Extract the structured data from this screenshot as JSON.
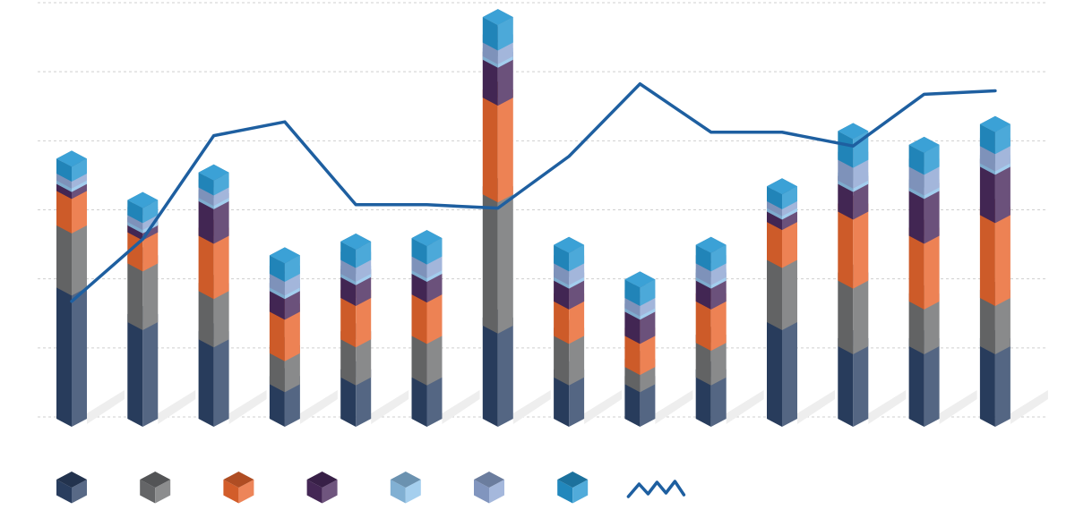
{
  "chart_data": {
    "type": "bar",
    "stacked": true,
    "style": "isometric-3d",
    "grid": true,
    "legend_placement": "bottom",
    "categories": [
      "",
      "",
      "",
      "",
      "",
      "",
      "",
      "",
      "",
      "",
      "",
      "",
      "",
      ""
    ],
    "ylim": [
      0,
      6.0
    ],
    "series": [
      {
        "type": "bar",
        "color": "#2e4468",
        "values": [
          1.9,
          1.4,
          1.15,
          0.5,
          0.6,
          0.6,
          1.35,
          0.6,
          0.5,
          0.6,
          1.4,
          1.05,
          1.05,
          1.05
        ]
      },
      {
        "type": "bar",
        "color": "#6f7072",
        "values": [
          0.9,
          0.85,
          0.7,
          0.45,
          0.55,
          0.6,
          1.9,
          0.6,
          0.25,
          0.5,
          0.9,
          0.95,
          0.65,
          0.7
        ]
      },
      {
        "type": "bar",
        "color": "#e9672f",
        "values": [
          0.5,
          0.45,
          0.8,
          0.6,
          0.6,
          0.6,
          1.4,
          0.5,
          0.45,
          0.6,
          0.55,
          1.0,
          0.95,
          1.2
        ]
      },
      {
        "type": "bar",
        "color": "#4b2b5e",
        "values": [
          0.1,
          0.1,
          0.5,
          0.3,
          0.3,
          0.3,
          0.55,
          0.3,
          0.35,
          0.3,
          0.15,
          0.4,
          0.65,
          0.7
        ]
      },
      {
        "type": "bar",
        "color": "#8fc3ea",
        "values": [
          0.05,
          0.05,
          0.05,
          0.05,
          0.05,
          0.05,
          0.05,
          0.05,
          0.05,
          0.05,
          0.05,
          0.05,
          0.05,
          0.05
        ]
      },
      {
        "type": "bar",
        "color": "#8fa6d3",
        "values": [
          0.1,
          0.1,
          0.15,
          0.2,
          0.2,
          0.2,
          0.2,
          0.2,
          0.15,
          0.2,
          0.1,
          0.3,
          0.3,
          0.25
        ]
      },
      {
        "type": "bar",
        "color": "#2596d1",
        "values": [
          0.1,
          0.1,
          0.1,
          0.15,
          0.15,
          0.15,
          0.25,
          0.15,
          0.15,
          0.15,
          0.1,
          0.3,
          0.2,
          0.2
        ]
      },
      {
        "type": "line",
        "color": "#1e5fa0",
        "values": [
          1.7,
          2.6,
          4.1,
          4.3,
          3.1,
          3.1,
          3.05,
          3.8,
          4.85,
          4.15,
          4.15,
          3.95,
          4.7,
          4.75
        ]
      }
    ],
    "legend": [
      {
        "kind": "cube",
        "color": "#2e4468"
      },
      {
        "kind": "cube",
        "color": "#6f7072"
      },
      {
        "kind": "cube",
        "color": "#e9672f"
      },
      {
        "kind": "cube",
        "color": "#4b2b5e"
      },
      {
        "kind": "cube",
        "color": "#8fc3ea"
      },
      {
        "kind": "cube",
        "color": "#8fa6d3"
      },
      {
        "kind": "cube",
        "color": "#2596d1"
      },
      {
        "kind": "line",
        "color": "#1e5fa0"
      }
    ],
    "colors": {
      "grid": "#cfcfcf",
      "shadow": "#eeeeee",
      "background": "#ffffff"
    }
  }
}
